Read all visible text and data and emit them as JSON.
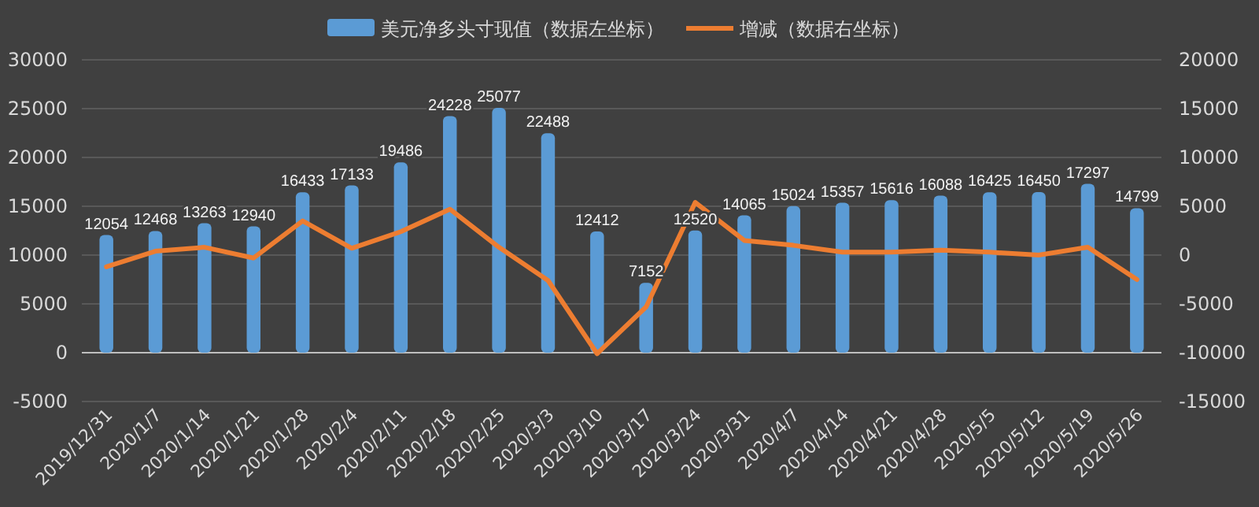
{
  "chart_data": {
    "type": "bar",
    "categories": [
      "2019/12/31",
      "2020/1/7",
      "2020/1/14",
      "2020/1/21",
      "2020/1/28",
      "2020/2/4",
      "2020/2/11",
      "2020/2/18",
      "2020/2/25",
      "2020/3/3",
      "2020/3/10",
      "2020/3/17",
      "2020/3/24",
      "2020/3/31",
      "2020/4/7",
      "2020/4/14",
      "2020/4/21",
      "2020/4/28",
      "2020/5/5",
      "2020/5/12",
      "2020/5/19",
      "2020/5/26"
    ],
    "series": [
      {
        "name": "美元净多头寸现值（数据左坐标）",
        "color": "#5b9bd5",
        "values": [
          12054,
          12468,
          13263,
          12940,
          16433,
          17133,
          19486,
          24228,
          25077,
          22488,
          12412,
          7152,
          12520,
          14065,
          15024,
          15357,
          15616,
          16088,
          16425,
          16450,
          17297,
          14799
        ],
        "value_labels": [
          "12054",
          "12468",
          "13263",
          "12940",
          "16433",
          "17133",
          "19486",
          "24228",
          "25077",
          "22488",
          "12412",
          "7152",
          "12520",
          "14065",
          "15024",
          "15357",
          "15616",
          "16088",
          "16425",
          "16450",
          "17297",
          "14799"
        ]
      },
      {
        "name": "增减（数据右坐标）",
        "type": "line",
        "axis": "y2",
        "color": "#ed7d31",
        "values": [
          -1200,
          400,
          800,
          -300,
          3500,
          700,
          2400,
          4700,
          800,
          -2600,
          -10100,
          -5300,
          5400,
          1500,
          1000,
          300,
          300,
          500,
          300,
          0,
          800,
          -2500
        ]
      }
    ],
    "ylim": [
      -5000,
      30000
    ],
    "yticks": [
      -5000,
      0,
      5000,
      10000,
      15000,
      20000,
      25000,
      30000
    ],
    "y2lim": [
      -15000,
      20000
    ],
    "y2ticks": [
      -15000,
      -10000,
      -5000,
      0,
      5000,
      10000,
      15000,
      20000
    ],
    "grid": "y",
    "legend": "top",
    "marker": "none",
    "line_style": "solid"
  }
}
